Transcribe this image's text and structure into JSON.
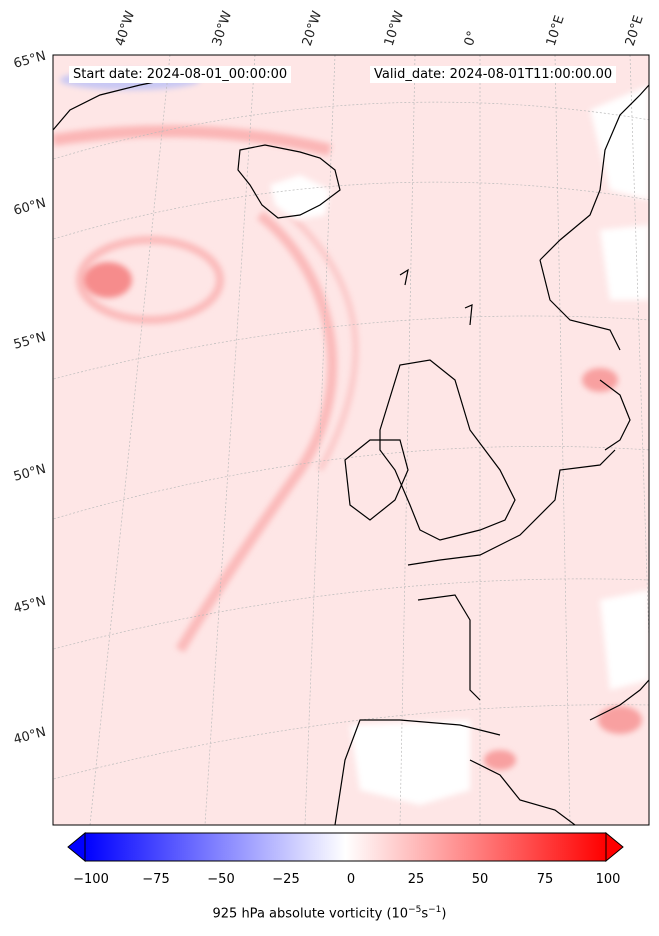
{
  "header": {
    "start_label": "Start date: 2024-08-01_00:00:00",
    "valid_label": "Valid_date: 2024-08-01T11:00:00.00"
  },
  "graticule": {
    "longitude_labels": [
      "40°W",
      "30°W",
      "20°W",
      "10°W",
      "0°",
      "10°E",
      "20°E"
    ],
    "latitude_labels": [
      "65°N",
      "60°N",
      "55°N",
      "50°N",
      "45°N",
      "40°N"
    ]
  },
  "colorbar": {
    "ticks": [
      "−100",
      "−75",
      "−50",
      "−25",
      "0",
      "25",
      "50",
      "75",
      "100"
    ],
    "label_main": "925 hPa absolute vorticity (10",
    "label_exp1": "−5",
    "label_mid": "s",
    "label_exp2": "−1",
    "label_end": ")",
    "min": -100,
    "max": 100,
    "levels": 41,
    "colormap": "bwr",
    "extend": "both"
  },
  "colors": {
    "land_outline": "#000000",
    "graticule": "#bbbbbb",
    "field_background": "#fee4e4",
    "positive_max": "#ff0000",
    "negative_max": "#0000ff"
  }
}
